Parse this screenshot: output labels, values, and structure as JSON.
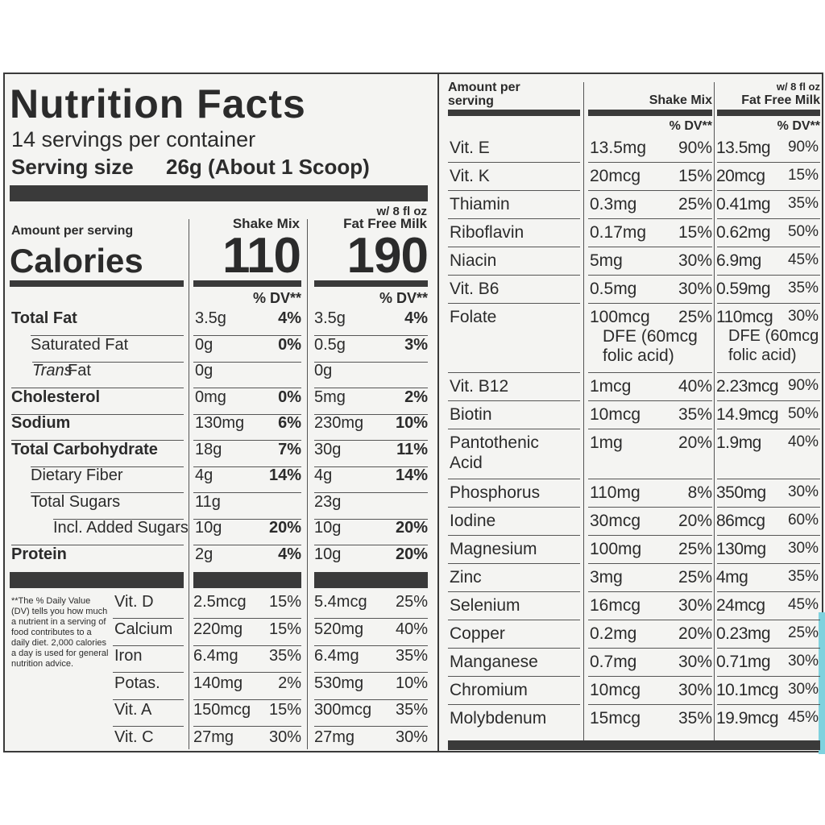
{
  "left": {
    "title": "Nutrition Facts",
    "servings": "14 servings per container",
    "serving_size_label": "Serving size",
    "serving_size_value": "26g (About 1 Scoop)",
    "amount_per_serving": "Amount per serving",
    "calories_label": "Calories",
    "col1_header": "Shake Mix",
    "col2_header_line1": "w/ 8 fl oz",
    "col2_header_line2": "Fat Free Milk",
    "calories_col1": "110",
    "calories_col2": "190",
    "dv_label": "% DV**",
    "nutrients": [
      {
        "name": "Total Fat",
        "a1": "3.5g",
        "p1": "4%",
        "a2": "3.5g",
        "p2": "4%"
      },
      {
        "name": "Saturated Fat",
        "a1": "0g",
        "p1": "0%",
        "a2": "0.5g",
        "p2": "3%"
      },
      {
        "name": "Trans",
        "name_suffix": " Fat",
        "a1": "0g",
        "p1": "",
        "a2": "0g",
        "p2": ""
      },
      {
        "name": "Cholesterol",
        "a1": "0mg",
        "p1": "0%",
        "a2": "5mg",
        "p2": "2%"
      },
      {
        "name": "Sodium",
        "a1": "130mg",
        "p1": "6%",
        "a2": "230mg",
        "p2": "10%"
      },
      {
        "name": "Total Carbohydrate",
        "a1": "18g",
        "p1": "7%",
        "a2": "30g",
        "p2": "11%"
      },
      {
        "name": "Dietary Fiber",
        "a1": "4g",
        "p1": "14%",
        "a2": "4g",
        "p2": "14%"
      },
      {
        "name": "Total Sugars",
        "a1": "11g",
        "p1": "",
        "a2": "23g",
        "p2": ""
      },
      {
        "name": "Incl. Added Sugars",
        "a1": "10g",
        "p1": "20%",
        "a2": "10g",
        "p2": "20%"
      },
      {
        "name": "Protein",
        "a1": "2g",
        "p1": "4%",
        "a2": "10g",
        "p2": "20%"
      }
    ],
    "footnote": "**The % Daily Value (DV) tells you how much a nutrient in a serving of food contributes to a daily diet. 2,000 calories a day is used for general nutrition advice.",
    "vitamins": [
      {
        "name": "Vit. D",
        "a1": "2.5mcg",
        "p1": "15%",
        "a2": "5.4mcg",
        "p2": "25%"
      },
      {
        "name": "Calcium",
        "a1": "220mg",
        "p1": "15%",
        "a2": "520mg",
        "p2": "40%"
      },
      {
        "name": "Iron",
        "a1": "6.4mg",
        "p1": "35%",
        "a2": "6.4mg",
        "p2": "35%"
      },
      {
        "name": "Potas.",
        "a1": "140mg",
        "p1": "2%",
        "a2": "530mg",
        "p2": "10%"
      },
      {
        "name": "Vit. A",
        "a1": "150mcg",
        "p1": "15%",
        "a2": "300mcg",
        "p2": "35%"
      },
      {
        "name": "Vit. C",
        "a1": "27mg",
        "p1": "30%",
        "a2": "27mg",
        "p2": "30%"
      }
    ]
  },
  "right": {
    "amount_per_serving_line1": "Amount per",
    "amount_per_serving_line2": "serving",
    "col1_header": "Shake Mix",
    "col2_header_line1": "w/ 8 fl oz",
    "col2_header_line2": "Fat Free Milk",
    "dv_label": "% DV**",
    "rows": [
      {
        "name": "Vit. E",
        "a1": "13.5mg",
        "p1": "90%",
        "a2": "13.5mg",
        "p2": "90%"
      },
      {
        "name": "Vit. K",
        "a1": "20mcg",
        "p1": "15%",
        "a2": "20mcg",
        "p2": "15%"
      },
      {
        "name": "Thiamin",
        "a1": "0.3mg",
        "p1": "25%",
        "a2": "0.41mg",
        "p2": "35%"
      },
      {
        "name": "Riboflavin",
        "a1": "0.17mg",
        "p1": "15%",
        "a2": "0.62mg",
        "p2": "50%"
      },
      {
        "name": "Niacin",
        "a1": "5mg",
        "p1": "30%",
        "a2": "6.9mg",
        "p2": "45%"
      },
      {
        "name": "Vit. B6",
        "a1": "0.5mg",
        "p1": "30%",
        "a2": "0.59mg",
        "p2": "35%"
      },
      {
        "name": "Folate",
        "a1": "100mcg",
        "a1_l2": "DFE (60mcg",
        "a1_l3": "folic acid)",
        "p1": "25%",
        "a2": "110mcg",
        "a2_l2": "DFE (60mcg",
        "a2_l3": "folic acid)",
        "p2": "30%"
      },
      {
        "name": "Vit. B12",
        "a1": "1mcg",
        "p1": "40%",
        "a2": "2.23mcg",
        "p2": "90%"
      },
      {
        "name": "Biotin",
        "a1": "10mcg",
        "p1": "35%",
        "a2": "14.9mcg",
        "p2": "50%"
      },
      {
        "name": "Pantothenic",
        "name_l2": "Acid",
        "a1": "1mg",
        "p1": "20%",
        "a2": "1.9mg",
        "p2": "40%"
      },
      {
        "name": "Phosphorus",
        "a1": "110mg",
        "p1": "8%",
        "a2": "350mg",
        "p2": "30%"
      },
      {
        "name": "Iodine",
        "a1": "30mcg",
        "p1": "20%",
        "a2": "86mcg",
        "p2": "60%"
      },
      {
        "name": "Magnesium",
        "a1": "100mg",
        "p1": "25%",
        "a2": "130mg",
        "p2": "30%"
      },
      {
        "name": "Zinc",
        "a1": "3mg",
        "p1": "25%",
        "a2": "4mg",
        "p2": "35%"
      },
      {
        "name": "Selenium",
        "a1": "16mcg",
        "p1": "30%",
        "a2": "24mcg",
        "p2": "45%"
      },
      {
        "name": "Copper",
        "a1": "0.2mg",
        "p1": "20%",
        "a2": "0.23mg",
        "p2": "25%"
      },
      {
        "name": "Manganese",
        "a1": "0.7mg",
        "p1": "30%",
        "a2": "0.71mg",
        "p2": "30%"
      },
      {
        "name": "Chromium",
        "a1": "10mcg",
        "p1": "30%",
        "a2": "10.1mcg",
        "p2": "30%"
      },
      {
        "name": "Molybdenum",
        "a1": "15mcg",
        "p1": "35%",
        "a2": "19.9mcg",
        "p2": "45%"
      }
    ]
  }
}
